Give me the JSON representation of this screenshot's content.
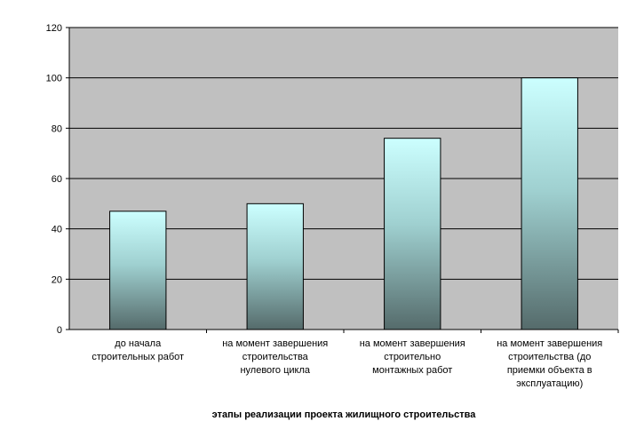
{
  "chart_data": {
    "type": "bar",
    "categories": [
      [
        "до начала",
        "строительных работ"
      ],
      [
        "на момент завершения",
        "строительства",
        "нулевого цикла"
      ],
      [
        "на момент завершения",
        "строительно",
        "монтажных работ"
      ],
      [
        "на момент завершения",
        "строительства (до",
        "приемки объекта в",
        "эксплуатацию)"
      ]
    ],
    "values": [
      47,
      50,
      76,
      100
    ],
    "xlabel": "этапы реализации проекта жилищного строительства",
    "ylabel": "",
    "ylim": [
      0,
      120
    ],
    "yticks": [
      0,
      20,
      40,
      60,
      80,
      100,
      120
    ],
    "grid": true,
    "colors": {
      "plot_background": "#c0c0c0",
      "bar_top": "#ccffff",
      "bar_bottom": "#556b6b",
      "gridline": "#000000"
    }
  }
}
